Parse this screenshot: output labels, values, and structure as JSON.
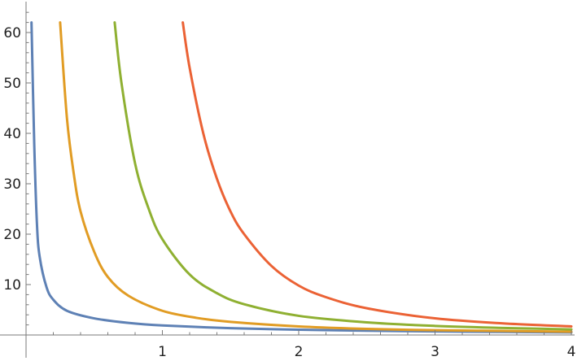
{
  "chart_data": {
    "type": "line",
    "title": "",
    "xlabel": "",
    "ylabel": "",
    "xlim": [
      0,
      4.02
    ],
    "ylim": [
      0,
      65
    ],
    "grid": false,
    "legend": "none",
    "x_ticks": [
      1,
      2,
      3,
      4
    ],
    "x_tick_labels": [
      "1",
      "2",
      "3",
      "4"
    ],
    "x_minor_step": 0.2,
    "y_ticks": [
      10,
      20,
      30,
      40,
      50,
      60
    ],
    "y_tick_labels": [
      "10",
      "20",
      "30",
      "40",
      "50",
      "60"
    ],
    "y_minor_step": 2,
    "series": [
      {
        "color": "#5E81B5",
        "x": [
          0.04,
          0.06,
          0.08,
          0.1,
          0.15,
          0.2,
          0.3,
          0.5,
          0.75,
          1,
          1.5,
          2,
          2.5,
          3,
          3.5,
          4
        ],
        "y": [
          62,
          38,
          22,
          15.5,
          9.5,
          7,
          4.8,
          3.3,
          2.4,
          1.9,
          1.35,
          1.05,
          0.85,
          0.7,
          0.6,
          0.5
        ]
      },
      {
        "color": "#E19C24",
        "x": [
          0.25,
          0.3,
          0.35,
          0.4,
          0.5,
          0.6,
          0.75,
          1,
          1.25,
          1.5,
          2,
          2.5,
          3,
          3.5,
          4
        ],
        "y": [
          62,
          43,
          32,
          24.5,
          16.5,
          11.5,
          7.8,
          4.8,
          3.4,
          2.6,
          1.7,
          1.2,
          0.95,
          0.8,
          0.65
        ]
      },
      {
        "color": "#8FB032",
        "x": [
          0.65,
          0.7,
          0.8,
          0.9,
          1,
          1.2,
          1.4,
          1.6,
          2,
          2.5,
          3,
          3.5,
          4
        ],
        "y": [
          62,
          50,
          34,
          25,
          19,
          12,
          8.3,
          6.1,
          3.8,
          2.5,
          1.8,
          1.4,
          1.1
        ]
      },
      {
        "color": "#EB6235",
        "x": [
          1.15,
          1.2,
          1.3,
          1.4,
          1.5,
          1.6,
          1.8,
          2,
          2.2,
          2.5,
          3,
          3.5,
          4
        ],
        "y": [
          62,
          53,
          40,
          31,
          24.5,
          20,
          13.7,
          9.8,
          7.5,
          5.3,
          3.3,
          2.3,
          1.7
        ]
      }
    ]
  }
}
